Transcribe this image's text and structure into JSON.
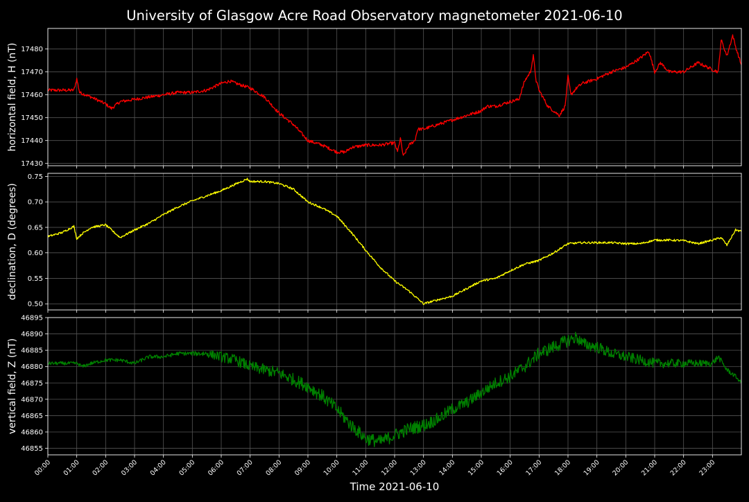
{
  "title": "University of Glasgow Acre Road Observatory magnetometer 2021-06-10",
  "xlabel": "Time 2021-06-10",
  "colors": {
    "background": "#000000",
    "axes": "#ffffff",
    "grid": "#555555",
    "H": "#ff0000",
    "D": "#ffff00",
    "Z": "#008000"
  },
  "chart_data": [
    {
      "type": "line",
      "ylabel": "horizontal field, H (nT)",
      "ylim": [
        17429,
        17489
      ],
      "yticks": [
        17430,
        17440,
        17450,
        17460,
        17470,
        17480
      ],
      "xlim": [
        0,
        24
      ],
      "xticks": [
        "00:00",
        "01:00",
        "02:00",
        "03:00",
        "04:00",
        "05:00",
        "06:00",
        "07:00",
        "08:00",
        "09:00",
        "10:00",
        "11:00",
        "12:00",
        "13:00",
        "14:00",
        "15:00",
        "16:00",
        "17:00",
        "18:00",
        "19:00",
        "20:00",
        "21:00",
        "22:00",
        "23:00"
      ],
      "grid": true,
      "series": [
        {
          "color": "#ff0000",
          "noise": 0.7,
          "x": [
            0,
            0.5,
            0.9,
            1.0,
            1.1,
            1.5,
            2.0,
            2.2,
            2.5,
            3.0,
            3.5,
            4.0,
            4.5,
            5.0,
            5.5,
            6.0,
            6.3,
            6.5,
            7.0,
            7.5,
            8.0,
            8.5,
            9.0,
            9.5,
            10.0,
            10.3,
            10.5,
            11.0,
            11.5,
            12.0,
            12.1,
            12.2,
            12.3,
            12.5,
            12.7,
            12.8,
            13.0,
            13.5,
            14.0,
            14.5,
            15.0,
            15.2,
            15.5,
            16.0,
            16.3,
            16.5,
            16.7,
            16.8,
            16.9,
            17.0,
            17.3,
            17.5,
            17.7,
            17.9,
            18.0,
            18.1,
            18.3,
            18.5,
            19.0,
            19.5,
            20.0,
            20.5,
            20.8,
            21.0,
            21.2,
            21.5,
            22.0,
            22.5,
            23.0,
            23.2,
            23.3,
            23.5,
            23.7,
            23.8,
            24.0
          ],
          "y": [
            17462,
            17462,
            17462,
            17467,
            17461,
            17459,
            17456,
            17454,
            17457,
            17458,
            17459,
            17460,
            17461,
            17461,
            17462,
            17465,
            17466,
            17465,
            17463,
            17459,
            17452,
            17447,
            17440,
            17438,
            17435,
            17435,
            17437,
            17438,
            17438,
            17439,
            17435,
            17441,
            17433,
            17438,
            17440,
            17445,
            17445,
            17447,
            17449,
            17451,
            17453,
            17455,
            17455,
            17457,
            17458,
            17466,
            17470,
            17477,
            17466,
            17462,
            17455,
            17453,
            17451,
            17455,
            17468,
            17460,
            17463,
            17465,
            17467,
            17470,
            17472,
            17476,
            17479,
            17470,
            17474,
            17470,
            17470,
            17474,
            17471,
            17470,
            17484,
            17477,
            17486,
            17481,
            17473
          ]
        }
      ]
    },
    {
      "type": "line",
      "ylabel": "declination, D (degrees)",
      "ylim": [
        0.488,
        0.756
      ],
      "yticks": [
        "0.50",
        "0.55",
        "0.60",
        "0.65",
        "0.70",
        "0.75"
      ],
      "xlim": [
        0,
        24
      ],
      "grid": true,
      "series": [
        {
          "color": "#ffff00",
          "noise": 0.002,
          "x": [
            0,
            0.5,
            0.9,
            1.0,
            1.2,
            1.5,
            2.0,
            2.5,
            3.0,
            3.5,
            4.0,
            4.5,
            5.0,
            5.5,
            6.0,
            6.5,
            6.9,
            7.0,
            7.5,
            8.0,
            8.5,
            9.0,
            9.5,
            10.0,
            10.5,
            11.0,
            11.5,
            12.0,
            12.5,
            13.0,
            13.5,
            14.0,
            14.5,
            15.0,
            15.5,
            16.0,
            16.5,
            17.0,
            17.5,
            18.0,
            18.5,
            19.0,
            19.5,
            20.0,
            20.5,
            21.0,
            21.5,
            22.0,
            22.5,
            23.0,
            23.3,
            23.5,
            23.8,
            24.0
          ],
          "y": [
            0.632,
            0.64,
            0.652,
            0.628,
            0.638,
            0.65,
            0.655,
            0.63,
            0.645,
            0.658,
            0.675,
            0.69,
            0.702,
            0.712,
            0.722,
            0.735,
            0.745,
            0.74,
            0.74,
            0.736,
            0.725,
            0.7,
            0.688,
            0.672,
            0.64,
            0.605,
            0.572,
            0.545,
            0.525,
            0.5,
            0.508,
            0.515,
            0.53,
            0.545,
            0.55,
            0.565,
            0.578,
            0.585,
            0.6,
            0.618,
            0.62,
            0.62,
            0.62,
            0.618,
            0.618,
            0.625,
            0.625,
            0.624,
            0.618,
            0.625,
            0.63,
            0.615,
            0.645,
            0.642
          ]
        }
      ]
    },
    {
      "type": "line",
      "ylabel": "vertical field, Z (nT)",
      "ylim": [
        46853,
        46895
      ],
      "yticks": [
        46855,
        46860,
        46865,
        46870,
        46875,
        46880,
        46885,
        46890,
        46895
      ],
      "xlim": [
        0,
        24
      ],
      "grid": true,
      "series": [
        {
          "color": "#008000",
          "noise_x": [
            0,
            5,
            6,
            9,
            11,
            13,
            15,
            17,
            18,
            19,
            21,
            23,
            24
          ],
          "noise": [
            0.5,
            0.6,
            1.6,
            2.0,
            2.0,
            2.0,
            1.8,
            2.0,
            2.0,
            1.8,
            1.5,
            1.0,
            0.5
          ],
          "x": [
            0,
            0.5,
            1.0,
            1.2,
            1.5,
            2.0,
            2.5,
            3.0,
            3.5,
            4.0,
            4.5,
            5.0,
            5.5,
            6.0,
            6.5,
            7.0,
            7.5,
            8.0,
            8.5,
            9.0,
            9.5,
            10.0,
            10.5,
            11.0,
            11.5,
            12.0,
            12.5,
            13.0,
            13.5,
            14.0,
            14.5,
            15.0,
            15.5,
            16.0,
            16.5,
            17.0,
            17.5,
            18.0,
            18.3,
            18.5,
            19.0,
            19.5,
            20.0,
            20.5,
            21.0,
            21.5,
            22.0,
            22.5,
            23.0,
            23.2,
            23.5,
            23.8,
            24.0
          ],
          "y": [
            46881,
            46881,
            46881,
            46880,
            46881,
            46882,
            46882,
            46881,
            46883,
            46883,
            46884,
            46884,
            46884,
            46883,
            46882,
            46880,
            46879,
            46878,
            46876,
            46874,
            46871,
            46867,
            46862,
            46858,
            46857,
            46859,
            46861,
            46862,
            46864,
            46867,
            46869,
            46872,
            46875,
            46877,
            46880,
            46884,
            46886,
            46888,
            46889,
            46887,
            46886,
            46884,
            46883,
            46882,
            46881,
            46881,
            46881,
            46881,
            46881,
            46883,
            46879,
            46877,
            46875
          ]
        }
      ]
    }
  ]
}
